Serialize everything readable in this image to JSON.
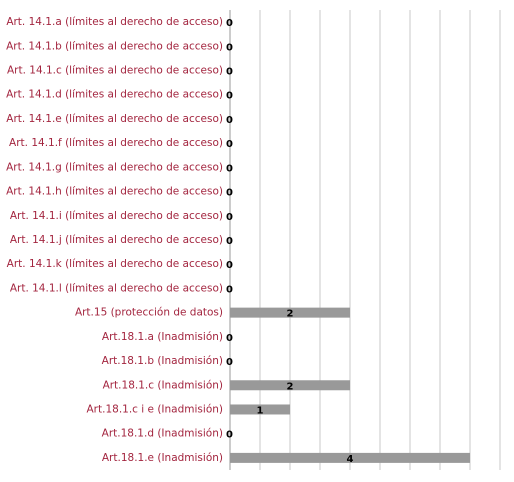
{
  "chart_data": {
    "type": "hbar",
    "categories": [
      "Art. 14.1.a (límites al derecho de acceso)",
      "Art. 14.1.b (límites al derecho de acceso)",
      "Art. 14.1.c  (límites al derecho de acceso)",
      "Art. 14.1.d (límites al derecho de acceso)",
      "Art. 14.1.e (límites al derecho de acceso)",
      "Art. 14.1.f (límites al derecho de acceso)",
      "Art. 14.1.g (límites al derecho de acceso)",
      "Art. 14.1.h (límites al derecho de acceso)",
      "Art. 14.1.i (límites al derecho de acceso)",
      "Art. 14.1.j (límites al derecho de acceso)",
      "Art. 14.1.k (límites al derecho de acceso)",
      "Art. 14.1.l (límites al derecho de acceso)",
      "Art.15 (protección de datos)",
      "Art.18.1.a (Inadmisión)",
      "Art.18.1.b (Inadmisión)",
      "Art.18.1.c (Inadmisión)",
      "Art.18.1.c i e (Inadmisión)",
      "Art.18.1.d (Inadmisión)",
      "Art.18.1.e (Inadmisión)"
    ],
    "values": [
      0,
      0,
      0,
      0,
      0,
      0,
      0,
      0,
      0,
      0,
      0,
      0,
      2,
      0,
      0,
      2,
      1,
      0,
      4
    ],
    "color": "#999999",
    "xlim": [
      0,
      4.5
    ],
    "xticks": [
      0,
      0.5,
      1,
      1.5,
      2,
      2.5,
      3,
      3.5,
      4,
      4.5
    ],
    "grid": true
  }
}
